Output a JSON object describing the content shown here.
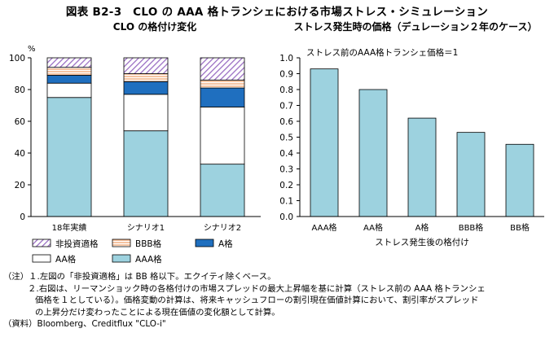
{
  "figure_title": "図表 B2-3　CLO の AAA 格トランシェにおける市場ストレス・シミュレーション",
  "chart_data": [
    {
      "type": "bar",
      "stacked": true,
      "title": "CLO の格付け変化",
      "unit": "%",
      "categories": [
        "18年実績",
        "シナリオ1",
        "シナリオ2"
      ],
      "yticks": [
        0,
        20,
        40,
        60,
        80,
        100
      ],
      "ylim": [
        0,
        100
      ],
      "series": [
        {
          "name": "AAA格",
          "values": [
            75,
            54,
            33
          ],
          "color": "#9dd2df",
          "pattern": "solid"
        },
        {
          "name": "AA格",
          "values": [
            9,
            23,
            36
          ],
          "color": "#ffffff",
          "pattern": "solid"
        },
        {
          "name": "A格",
          "values": [
            5,
            8,
            12
          ],
          "color": "#1f6fbf",
          "pattern": "solid"
        },
        {
          "name": "BBB格",
          "values": [
            5,
            5,
            5
          ],
          "color": "#f4b183",
          "pattern": "horizontal"
        },
        {
          "name": "非投資適格",
          "values": [
            6,
            10,
            14
          ],
          "color": "#9a6fc3",
          "pattern": "diagonal"
        }
      ],
      "legend_order": [
        "非投資適格",
        "BBB格",
        "A格",
        "AA格",
        "AAA格"
      ],
      "legend": "bottom",
      "grid": false
    },
    {
      "type": "bar",
      "title": "ストレス発生時の価格（デュレーション２年のケース）",
      "annotation": "ストレス前のAAA格トランシェ価格＝1",
      "categories": [
        "AAA格",
        "AA格",
        "A格",
        "BBB格",
        "BB格"
      ],
      "values": [
        0.93,
        0.8,
        0.62,
        0.53,
        0.455
      ],
      "xlabel": "ストレス発生後の格付け",
      "yticks": [
        "0.0",
        "0.1",
        "0.2",
        "0.3",
        "0.4",
        "0.5",
        "0.6",
        "0.7",
        "0.8",
        "0.9",
        "1.0"
      ],
      "ylim": [
        0,
        1
      ],
      "color": "#9dd2df",
      "grid": false
    }
  ],
  "notes": {
    "line1": "（注）１.左図の「非投資適格」は BB 格以下。エクイティ除くベース。",
    "line2": "２.右図は、リーマンショック時の各格付けの市場スプレッドの最大上昇幅を基に計算（ストレス前の AAA 格トランシェ",
    "line3": "価格を１としている）。価格変動の計算は、将来キャッシュフローの割引現在価値計算において、割引率がスプレッド",
    "line4": "の上昇分だけ変わったことによる現在価値の変化額として計算。",
    "line5": "（資料）Bloomberg、Creditflux \"CLO-i\""
  }
}
